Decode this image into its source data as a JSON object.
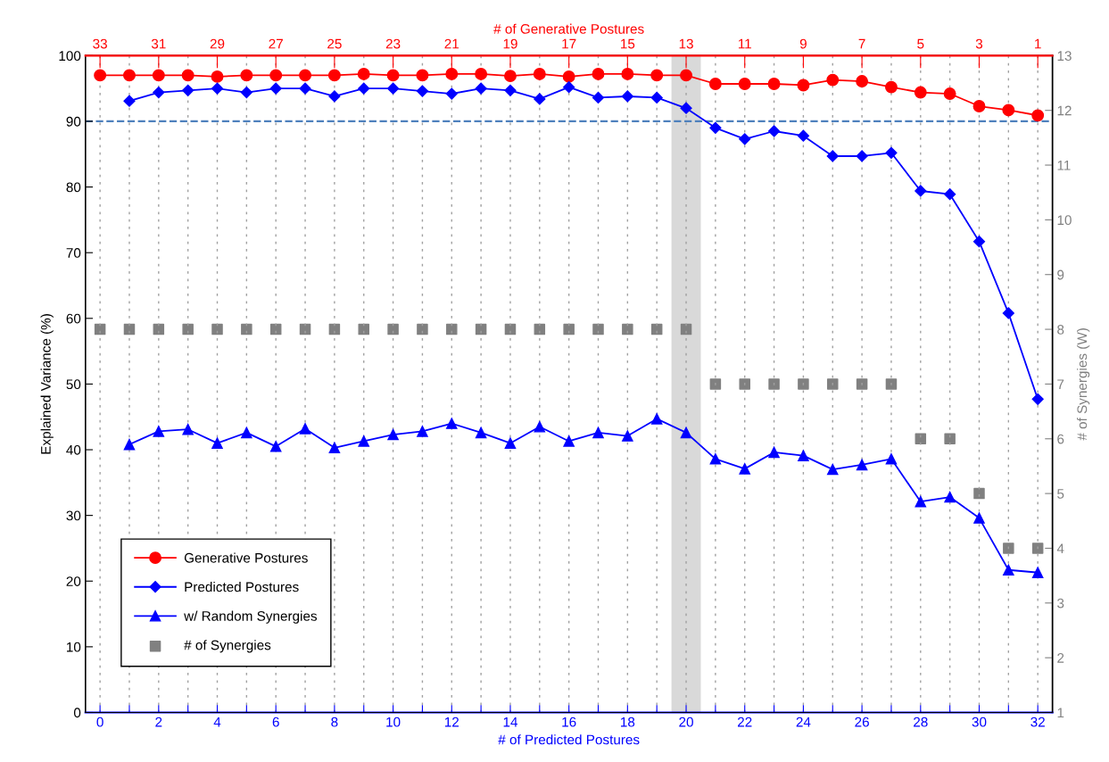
{
  "chart_data": {
    "type": "line",
    "xlabel": "# of Predicted Postures",
    "x2label": "# of Generative Postures",
    "ylabel": "Explained Variance (%)",
    "y2label": "# of Synergies (W)",
    "xlim": [
      -0.5,
      32.5
    ],
    "xticks": [
      0,
      {
        "value": 1,
        "label": null
      },
      2,
      {
        "value": 3,
        "label": null
      },
      4,
      {
        "value": 5,
        "label": null
      },
      6,
      {
        "value": 7,
        "label": null
      },
      8,
      {
        "value": 9,
        "label": null
      },
      10,
      {
        "value": 11,
        "label": null
      },
      12,
      {
        "value": 13,
        "label": null
      },
      14,
      {
        "value": 15,
        "label": null
      },
      16,
      {
        "value": 17,
        "label": null
      },
      18,
      {
        "value": 19,
        "label": null
      },
      20,
      {
        "value": 21,
        "label": null
      },
      22,
      {
        "value": 23,
        "label": null
      },
      24,
      {
        "value": 25,
        "label": null
      },
      26,
      {
        "value": 27,
        "label": null
      },
      28,
      {
        "value": 29,
        "label": null
      },
      30,
      {
        "value": 31,
        "label": null
      },
      32
    ],
    "x2lim": [
      33.5,
      0.5
    ],
    "x2ticks": [
      33,
      31,
      29,
      27,
      25,
      23,
      21,
      19,
      17,
      15,
      13,
      11,
      9,
      7,
      5,
      3,
      1
    ],
    "ylim": [
      0,
      100
    ],
    "yticks": [
      0,
      10,
      20,
      30,
      40,
      50,
      60,
      70,
      80,
      90,
      100
    ],
    "y2lim": [
      1,
      13
    ],
    "y2ticks": [
      1,
      2,
      3,
      4,
      5,
      6,
      7,
      8,
      9,
      10,
      11,
      12,
      13
    ],
    "grid": "x",
    "legend": "bottom left",
    "bands": [
      {
        "axis": "x",
        "from": 19.5,
        "to": 20.5,
        "color": "#d9d9d9"
      }
    ],
    "ref_lines": [
      {
        "axis": "y",
        "value": 90,
        "color": "#4f81bd",
        "line_style": "dashed"
      }
    ],
    "series": [
      {
        "name": "Generative Postures",
        "color": "#ff0000",
        "marker": "circle",
        "x": [
          0,
          1,
          2,
          3,
          4,
          5,
          6,
          7,
          8,
          9,
          10,
          11,
          12,
          13,
          14,
          15,
          16,
          17,
          18,
          19,
          20,
          21,
          22,
          23,
          24,
          25,
          26,
          27,
          28,
          29,
          30,
          31,
          32
        ],
        "values": [
          97,
          97,
          97,
          97,
          96.8,
          97,
          97,
          97,
          97,
          97.2,
          97,
          97,
          97.2,
          97.2,
          96.9,
          97.2,
          96.8,
          97.2,
          97.2,
          97,
          97,
          95.7,
          95.7,
          95.7,
          95.5,
          96.3,
          96.1,
          95.2,
          94.4,
          94.2,
          92.3,
          91.7,
          90.9
        ]
      },
      {
        "name": "Predicted Postures",
        "color": "#0000ff",
        "marker": "diamond",
        "x": [
          1,
          2,
          3,
          4,
          5,
          6,
          7,
          8,
          9,
          10,
          11,
          12,
          13,
          14,
          15,
          16,
          17,
          18,
          19,
          20,
          21,
          22,
          23,
          24,
          25,
          26,
          27,
          28,
          29,
          30,
          31,
          32
        ],
        "values": [
          93.1,
          94.4,
          94.7,
          95,
          94.4,
          95,
          95,
          93.8,
          95,
          95,
          94.6,
          94.2,
          95,
          94.7,
          93.4,
          95.2,
          93.6,
          93.8,
          93.6,
          92,
          89,
          87.3,
          88.5,
          87.8,
          84.7,
          84.7,
          85.2,
          79.4,
          78.9,
          71.7,
          60.8,
          47.7
        ]
      },
      {
        "name": "w/ Random Synergies",
        "color": "#0000ff",
        "marker": "triangle",
        "x": [
          1,
          2,
          3,
          4,
          5,
          6,
          7,
          8,
          9,
          10,
          11,
          12,
          13,
          14,
          15,
          16,
          17,
          18,
          19,
          20,
          21,
          22,
          23,
          24,
          25,
          26,
          27,
          28,
          29,
          30,
          31,
          32
        ],
        "values": [
          40.8,
          42.8,
          43.1,
          41,
          42.6,
          40.5,
          43.2,
          40.3,
          41.3,
          42.3,
          42.8,
          44,
          42.6,
          41,
          43.5,
          41.3,
          42.6,
          42.1,
          44.7,
          42.6,
          38.6,
          37.1,
          39.6,
          39.1,
          37,
          37.7,
          38.6,
          32.1,
          32.8,
          29.6,
          21.7,
          21.3
        ]
      },
      {
        "name": "# of Synergies",
        "type": "scatter",
        "axis": "y2",
        "color": "#808080",
        "marker": "square",
        "x": [
          0,
          1,
          2,
          3,
          4,
          5,
          6,
          7,
          8,
          9,
          10,
          11,
          12,
          13,
          14,
          15,
          16,
          17,
          18,
          19,
          20,
          21,
          22,
          23,
          24,
          25,
          26,
          27,
          28,
          29,
          30,
          31,
          32
        ],
        "values": [
          8,
          8,
          8,
          8,
          8,
          8,
          8,
          8,
          8,
          8,
          8,
          8,
          8,
          8,
          8,
          8,
          8,
          8,
          8,
          8,
          8,
          7,
          7,
          7,
          7,
          7,
          7,
          7,
          6,
          6,
          5,
          4,
          4
        ]
      }
    ]
  }
}
